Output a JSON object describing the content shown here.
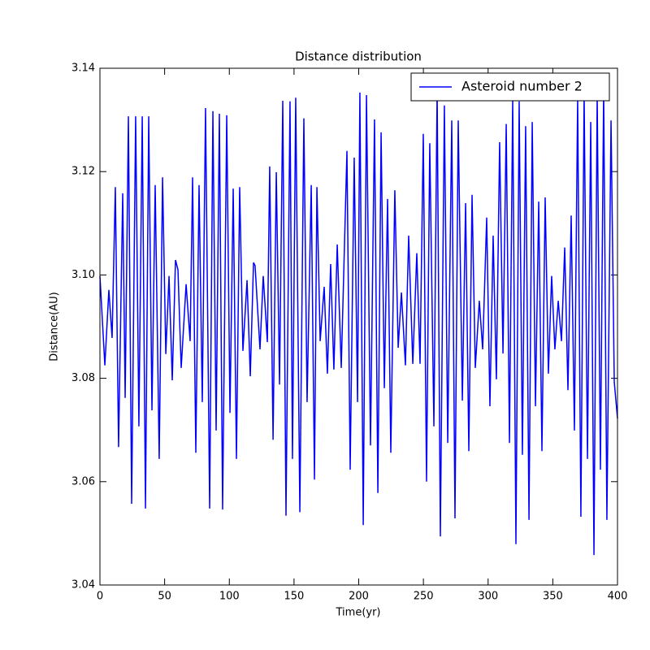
{
  "chart_data": {
    "type": "line",
    "title": "Distance distribution",
    "xlabel": "Time(yr)",
    "ylabel": "Distance(AU)",
    "x": [
      0,
      3.8,
      6.9,
      9.4,
      11.9,
      14.4,
      17.6,
      19.5,
      22.0,
      24.5,
      27.6,
      30.1,
      32.7,
      35.2,
      37.7,
      40.2,
      42.7,
      45.8,
      48.4,
      50.9,
      53.4,
      55.9,
      58.4,
      60.3,
      62.8,
      66.6,
      69.7,
      71.6,
      74.1,
      76.6,
      79.1,
      81.6,
      84.8,
      87.3,
      89.8,
      92.3,
      94.8,
      98.0,
      100.5,
      103.0,
      105.5,
      108.0,
      110.5,
      113.7,
      116.2,
      118.7,
      119.9,
      123.7,
      126.2,
      129.4,
      131.2,
      133.8,
      136.3,
      138.8,
      141.3,
      143.8,
      146.9,
      148.8,
      151.3,
      154.5,
      157.6,
      160.1,
      163.3,
      165.8,
      167.7,
      170.2,
      173.3,
      175.8,
      178.3,
      180.8,
      183.4,
      186.5,
      190.9,
      193.4,
      196.5,
      199.1,
      200.9,
      203.5,
      206.0,
      209.1,
      212.2,
      214.8,
      217.3,
      219.8,
      222.3,
      224.8,
      227.9,
      230.5,
      233.0,
      236.1,
      238.6,
      241.8,
      244.9,
      247.4,
      249.9,
      252.4,
      254.9,
      258.1,
      260.6,
      263.1,
      266.2,
      268.8,
      271.9,
      274.4,
      276.9,
      280.1,
      282.6,
      285.1,
      287.6,
      290.1,
      293.2,
      295.8,
      298.9,
      301.4,
      303.9,
      306.4,
      308.9,
      311.5,
      314.0,
      316.5,
      319.0,
      321.5,
      324.0,
      326.5,
      329.0,
      331.6,
      334.1,
      336.6,
      339.1,
      341.6,
      344.1,
      346.6,
      349.1,
      351.6,
      354.2,
      356.7,
      359.2,
      361.7,
      364.2,
      366.7,
      369.2,
      371.7,
      374.2,
      376.8,
      379.3,
      381.8,
      384.3,
      386.8,
      389.3,
      391.8,
      395.0,
      397.5,
      400
    ],
    "series": [
      {
        "name": "Asteroid number 2",
        "color": "#0000ff",
        "values": [
          3.0998,
          3.0825,
          3.0971,
          3.0878,
          3.117,
          3.0667,
          3.1158,
          3.0762,
          3.1307,
          3.0557,
          3.1307,
          3.0707,
          3.1307,
          3.0548,
          3.1307,
          3.0738,
          3.1174,
          3.0644,
          3.1189,
          3.0847,
          3.0998,
          3.0796,
          3.1029,
          3.101,
          3.082,
          3.0982,
          3.0872,
          3.1189,
          3.0656,
          3.1174,
          3.0754,
          3.1323,
          3.0548,
          3.1317,
          3.0699,
          3.1312,
          3.0546,
          3.1309,
          3.0733,
          3.1167,
          3.0644,
          3.117,
          3.0853,
          3.099,
          3.0804,
          3.1024,
          3.1018,
          3.0856,
          3.0998,
          3.087,
          3.121,
          3.0681,
          3.1199,
          3.0788,
          3.1337,
          3.0534,
          3.1336,
          3.0644,
          3.1343,
          3.0541,
          3.1303,
          3.0754,
          3.1174,
          3.0604,
          3.117,
          3.0872,
          3.0977,
          3.0809,
          3.1021,
          3.0817,
          3.1059,
          3.082,
          3.124,
          3.0623,
          3.1227,
          3.0754,
          3.1353,
          3.0516,
          3.1348,
          3.067,
          3.1301,
          3.0578,
          3.1276,
          3.0781,
          3.1147,
          3.0656,
          3.1164,
          3.0859,
          3.0966,
          3.0825,
          3.1076,
          3.0828,
          3.1042,
          3.0828,
          3.1273,
          3.06,
          3.1255,
          3.0707,
          3.1359,
          3.0494,
          3.1328,
          3.0675,
          3.1299,
          3.0529,
          3.1299,
          3.0757,
          3.1139,
          3.0659,
          3.1155,
          3.082,
          3.095,
          3.0856,
          3.1111,
          3.0746,
          3.1076,
          3.0798,
          3.1257,
          3.0848,
          3.1292,
          3.0675,
          3.134,
          3.0479,
          3.1336,
          3.0652,
          3.1288,
          3.0526,
          3.1296,
          3.0746,
          3.1142,
          3.0659,
          3.115,
          3.0809,
          3.0998,
          3.0856,
          3.095,
          3.0872,
          3.1053,
          3.0777,
          3.1115,
          3.0699,
          3.1343,
          3.0532,
          3.1351,
          3.0644,
          3.1296,
          3.0458,
          3.1351,
          3.0623,
          3.1359,
          3.0526,
          3.1299,
          3.0793,
          3.0722
        ]
      }
    ],
    "xlim": [
      0,
      400
    ],
    "xticks": [
      0,
      50,
      100,
      150,
      200,
      250,
      300,
      350,
      400
    ],
    "ylim": [
      3.04,
      3.14
    ],
    "yticks": [
      3.04,
      3.06,
      3.08,
      {
        "value": 3.1,
        "label": "3.10"
      },
      3.12,
      3.14
    ],
    "legend": "upper right",
    "grid": false
  }
}
